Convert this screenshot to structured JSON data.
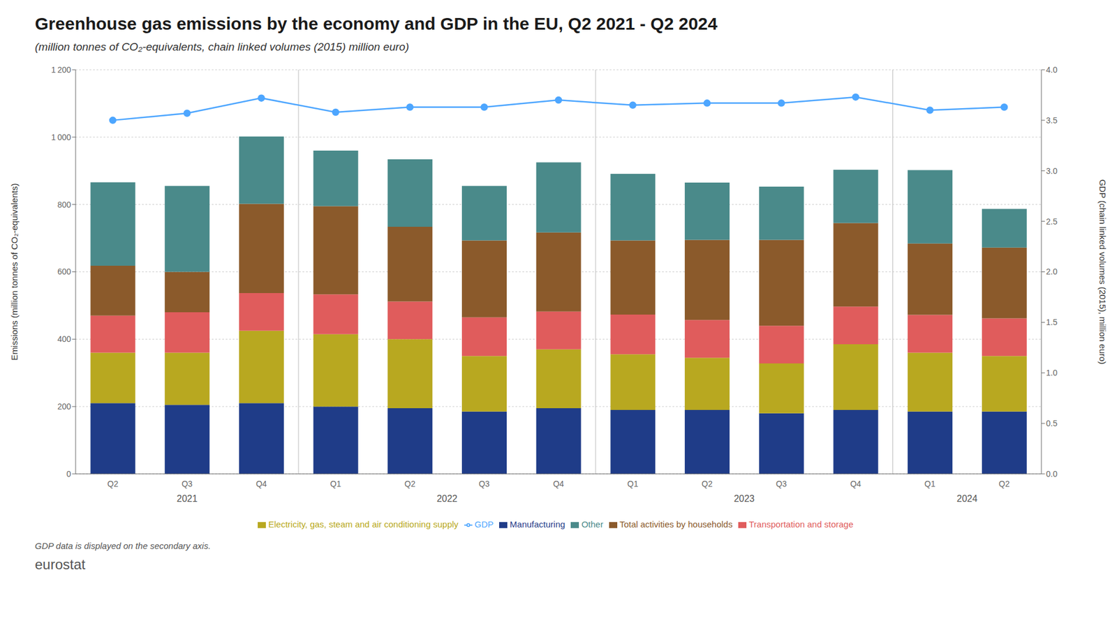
{
  "chart_data": {
    "type": "bar",
    "stacked": true,
    "title": "Greenhouse gas emissions by the economy and GDP in the EU, Q2 2021 - Q2 2024",
    "subtitle": "(million tonnes of CO₂-equivalents, chain linked volumes (2015) million euro)",
    "annotations": [
      "GDP data is displayed on the secondary axis.",
      "eurostat"
    ],
    "ylabel": "Emissions (million tonnes of CO₂-equivalents)",
    "y2label": "GDP (chain linked volumes (2015), million euro)",
    "categories": [
      "Q2",
      "Q3",
      "Q4",
      "Q1",
      "Q2",
      "Q3",
      "Q4",
      "Q1",
      "Q2",
      "Q3",
      "Q4",
      "Q1",
      "Q2"
    ],
    "category_groups": [
      "2021",
      "2021",
      "2021",
      "2022",
      "2022",
      "2022",
      "2022",
      "2023",
      "2023",
      "2023",
      "2023",
      "2024",
      "2024"
    ],
    "series": [
      {
        "name": "Manufacturing",
        "color": "#1f3c88",
        "values": [
          210,
          205,
          210,
          200,
          195,
          185,
          195,
          190,
          190,
          180,
          190,
          185,
          185
        ]
      },
      {
        "name": "Electricity, gas, steam and air conditioning supply",
        "color": "#b8a820",
        "values": [
          150,
          155,
          215,
          215,
          205,
          165,
          175,
          165,
          155,
          148,
          195,
          175,
          165
        ]
      },
      {
        "name": "Transportation and storage",
        "color": "#e05c5c",
        "values": [
          110,
          120,
          112,
          118,
          112,
          115,
          112,
          118,
          112,
          112,
          112,
          112,
          112
        ]
      },
      {
        "name": "Total activities by households",
        "color": "#8b5a2b",
        "values": [
          148,
          120,
          265,
          262,
          222,
          228,
          235,
          220,
          238,
          255,
          248,
          212,
          210
        ]
      },
      {
        "name": "Other",
        "color": "#4a8a8a",
        "values": [
          248,
          255,
          200,
          165,
          200,
          162,
          208,
          198,
          170,
          158,
          158,
          218,
          115
        ]
      },
      {
        "name": "GDP",
        "type": "line",
        "axis": "y2",
        "color": "#4da6ff",
        "marker": "circle",
        "line_style": "solid",
        "values": [
          3.5,
          3.57,
          3.72,
          3.58,
          3.63,
          3.63,
          3.7,
          3.65,
          3.67,
          3.67,
          3.73,
          3.6,
          3.63
        ]
      }
    ],
    "ylim": [
      0,
      1200
    ],
    "yticks": [
      0,
      200,
      400,
      600,
      800,
      {
        "value": 1000,
        "label": "1 000"
      },
      {
        "value": 1200,
        "label": "1 200"
      }
    ],
    "y2lim": [
      0,
      4.0
    ],
    "y2ticks": [
      {
        "value": 0,
        "label": "0.0"
      },
      0.5,
      {
        "value": 1,
        "label": "1.0"
      },
      1.5,
      {
        "value": 2,
        "label": "2.0"
      },
      2.5,
      {
        "value": 3,
        "label": "3.0"
      },
      3.5,
      {
        "value": 4,
        "label": "4.0"
      }
    ],
    "grid": true,
    "legend": "bottom"
  }
}
